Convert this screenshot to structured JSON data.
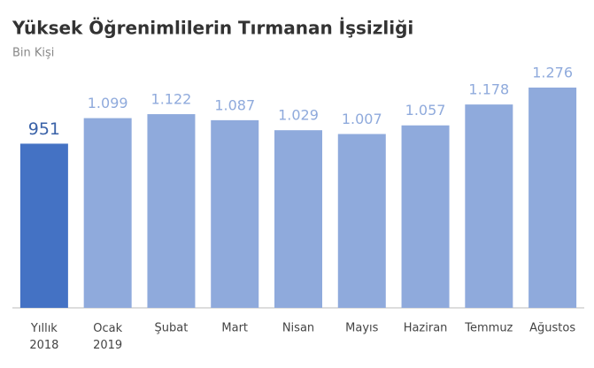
{
  "chart_data": {
    "type": "bar",
    "title": "Yüksek Öğrenimlilerin Tırmanan İşsizliği",
    "subtitle": "Bin Kişi",
    "categories": [
      "Yıllık 2018",
      "Ocak 2019",
      "Şubat",
      "Mart",
      "Nisan",
      "Mayıs",
      "Haziran",
      "Temmuz",
      "Ağustos"
    ],
    "values": [
      951,
      1099,
      1122,
      1087,
      1029,
      1007,
      1057,
      1178,
      1276
    ],
    "value_labels": [
      "951",
      "1.099",
      "1.122",
      "1.087",
      "1.029",
      "1.007",
      "1.057",
      "1.178",
      "1.276"
    ],
    "colors": [
      "#4472c4",
      "#8faadc",
      "#8faadc",
      "#8faadc",
      "#8faadc",
      "#8faadc",
      "#8faadc",
      "#8faadc",
      "#8faadc"
    ],
    "grid": false
  }
}
